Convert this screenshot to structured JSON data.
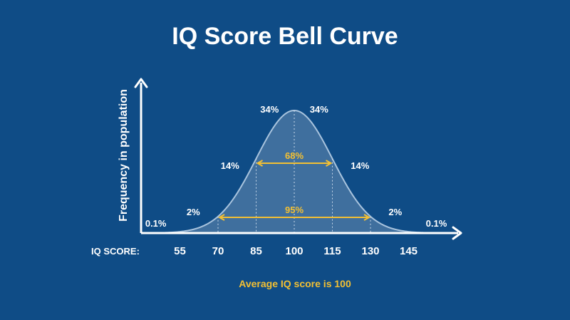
{
  "chart_data": {
    "type": "area",
    "title": "IQ Score Bell Curve",
    "ylabel": "Frequency in population",
    "x_axis_prefix": "IQ SCORE:",
    "x_ticks": [
      55,
      70,
      85,
      100,
      115,
      130,
      145
    ],
    "mean": 100,
    "std_dev": 15,
    "xlim": [
      40,
      160
    ],
    "segment_labels": [
      {
        "text": "0.1%",
        "x": 50
      },
      {
        "text": "2%",
        "x": 62.5
      },
      {
        "text": "14%",
        "x": 77.5
      },
      {
        "text": "34%",
        "x": 92.5
      },
      {
        "text": "34%",
        "x": 107.5
      },
      {
        "text": "14%",
        "x": 122.5
      },
      {
        "text": "2%",
        "x": 137.5
      },
      {
        "text": "0.1%",
        "x": 152
      }
    ],
    "ranges": [
      {
        "label": "68%",
        "from": 85,
        "to": 115
      },
      {
        "label": "95%",
        "from": 70,
        "to": 130
      }
    ],
    "footnote": "Average IQ score is 100",
    "colors": {
      "background": "#0f4c86",
      "curve_fill": "#3f6f9e",
      "curve_stroke": "#a9c4de",
      "accent": "#f3c033",
      "text": "#ffffff"
    }
  }
}
